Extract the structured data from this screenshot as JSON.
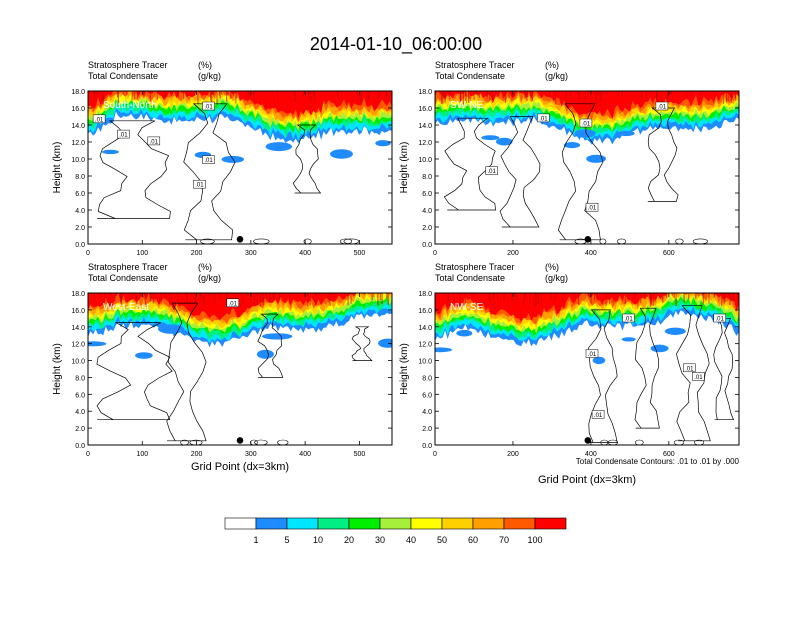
{
  "title": "2014-01-10_06:00:00",
  "panel_header": {
    "line1_left": "Stratosphere Tracer",
    "line1_right": "(%)",
    "line2_left": "Total Condensate",
    "line2_right": "(g/kg)"
  },
  "ylabel": "Height (km)",
  "xlabel": "Grid Point (dx=3km)",
  "contour_note": "Total Condensate Contours: .01 to .01 by .000",
  "colorbar": {
    "colors": [
      "#ffffff",
      "#1e8cff",
      "#00e6ff",
      "#00ee84",
      "#00ee00",
      "#a6f03c",
      "#ffff00",
      "#ffd000",
      "#ffa000",
      "#ff5a00",
      "#ff0000"
    ],
    "labels": [
      "1",
      "5",
      "10",
      "20",
      "30",
      "40",
      "50",
      "60",
      "70",
      "100"
    ]
  },
  "chart_data": [
    {
      "type": "filled-contour",
      "name": "South-North",
      "xlim": [
        0,
        560
      ],
      "ylim": [
        0,
        18
      ],
      "xticks": [
        "0",
        "100",
        "200",
        "300",
        "400",
        "500"
      ],
      "yticks": [
        "0.0",
        "2.0",
        "4.0",
        "6.0",
        "8.0",
        "10.0",
        "12.0",
        "14.0",
        "16.0",
        "18.0"
      ],
      "contour_labels": [
        ".01",
        ".01",
        ".01",
        ".01",
        ".01",
        ".01"
      ],
      "marker_x": 280
    },
    {
      "type": "filled-contour",
      "name": "SW-NE",
      "xlim": [
        0,
        780
      ],
      "ylim": [
        0,
        18
      ],
      "xticks": [
        "0",
        "200",
        "400",
        "600"
      ],
      "yticks": [
        "0.0",
        "2.0",
        "4.0",
        "6.0",
        "8.0",
        "10.0",
        "12.0",
        "14.0",
        "16.0",
        "18.0"
      ],
      "contour_labels": [
        ".01",
        ".01",
        ".01",
        ".01",
        ".01"
      ],
      "marker_x": 392
    },
    {
      "type": "filled-contour",
      "name": "West-East",
      "xlim": [
        0,
        560
      ],
      "ylim": [
        0,
        18
      ],
      "xticks": [
        "0",
        "100",
        "200",
        "300",
        "400",
        "500"
      ],
      "yticks": [
        "0.0",
        "2.0",
        "4.0",
        "6.0",
        "8.0",
        "10.0",
        "12.0",
        "14.0",
        "16.0",
        "18.0"
      ],
      "contour_labels": [
        ".01"
      ],
      "marker_x": 280
    },
    {
      "type": "filled-contour",
      "name": "NW-SE",
      "xlim": [
        0,
        780
      ],
      "ylim": [
        0,
        18
      ],
      "xticks": [
        "0",
        "200",
        "400",
        "600"
      ],
      "yticks": [
        "0.0",
        "2.0",
        "4.0",
        "6.0",
        "8.0",
        "10.0",
        "12.0",
        "14.0",
        "16.0",
        "18.0"
      ],
      "contour_labels": [
        ".01",
        ".01",
        ".01",
        ".01",
        ".01",
        ".01"
      ],
      "marker_x": 392
    }
  ]
}
